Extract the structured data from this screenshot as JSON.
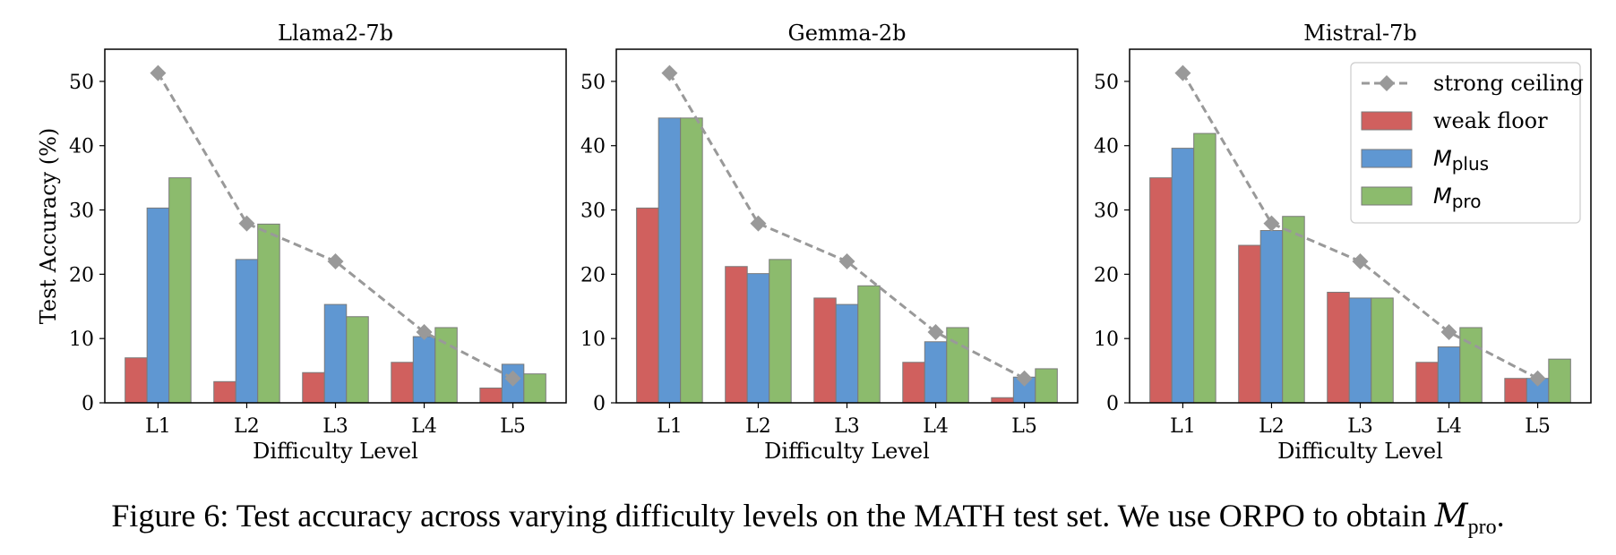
{
  "chart_data": [
    {
      "type": "bar",
      "title": "Llama2-7b",
      "xlabel": "Difficulty Level",
      "ylabel": "Test Accuracy (%)",
      "ylim": [
        0,
        55
      ],
      "yticks": [
        0,
        10,
        20,
        30,
        40,
        50
      ],
      "categories": [
        "L1",
        "L2",
        "L3",
        "L4",
        "L5"
      ],
      "series": [
        {
          "name": "weak floor",
          "kind": "bar",
          "color": "#d0605e",
          "values": [
            7.0,
            3.3,
            4.7,
            6.3,
            2.3
          ]
        },
        {
          "name": "M_plus",
          "kind": "bar",
          "color": "#5f97d2",
          "values": [
            30.3,
            22.3,
            15.3,
            10.3,
            6.0
          ]
        },
        {
          "name": "M_pro",
          "kind": "bar",
          "color": "#8cbb6d",
          "values": [
            35.0,
            27.8,
            13.4,
            11.7,
            4.5
          ]
        },
        {
          "name": "strong ceiling",
          "kind": "line",
          "color": "#999999",
          "values": [
            51.3,
            27.9,
            22.0,
            11.0,
            3.8
          ]
        }
      ]
    },
    {
      "type": "bar",
      "title": "Gemma-2b",
      "xlabel": "Difficulty Level",
      "ylabel": "",
      "ylim": [
        0,
        55
      ],
      "yticks": [
        0,
        10,
        20,
        30,
        40,
        50
      ],
      "categories": [
        "L1",
        "L2",
        "L3",
        "L4",
        "L5"
      ],
      "series": [
        {
          "name": "weak floor",
          "kind": "bar",
          "color": "#d0605e",
          "values": [
            30.3,
            21.2,
            16.3,
            6.3,
            0.8
          ]
        },
        {
          "name": "M_plus",
          "kind": "bar",
          "color": "#5f97d2",
          "values": [
            44.3,
            20.1,
            15.3,
            9.5,
            4.0
          ]
        },
        {
          "name": "M_pro",
          "kind": "bar",
          "color": "#8cbb6d",
          "values": [
            44.3,
            22.3,
            18.2,
            11.7,
            5.3
          ]
        },
        {
          "name": "strong ceiling",
          "kind": "line",
          "color": "#999999",
          "values": [
            51.3,
            27.9,
            22.0,
            11.0,
            3.8
          ]
        }
      ]
    },
    {
      "type": "bar",
      "title": "Mistral-7b",
      "xlabel": "Difficulty Level",
      "ylabel": "",
      "ylim": [
        0,
        55
      ],
      "yticks": [
        0,
        10,
        20,
        30,
        40,
        50
      ],
      "categories": [
        "L1",
        "L2",
        "L3",
        "L4",
        "L5"
      ],
      "legend": "top-right",
      "series": [
        {
          "name": "weak floor",
          "kind": "bar",
          "color": "#d0605e",
          "values": [
            35.0,
            24.5,
            17.2,
            6.3,
            3.8
          ]
        },
        {
          "name": "M_plus",
          "kind": "bar",
          "color": "#5f97d2",
          "values": [
            39.6,
            26.8,
            16.3,
            8.7,
            3.8
          ]
        },
        {
          "name": "M_pro",
          "kind": "bar",
          "color": "#8cbb6d",
          "values": [
            41.9,
            29.0,
            16.3,
            11.7,
            6.8
          ]
        },
        {
          "name": "strong ceiling",
          "kind": "line",
          "color": "#999999",
          "values": [
            51.3,
            27.9,
            22.0,
            11.0,
            3.8
          ]
        }
      ]
    }
  ],
  "legend_items": [
    {
      "label": "strong ceiling",
      "kind": "line",
      "color": "#999999"
    },
    {
      "label": "weak floor",
      "kind": "bar",
      "color": "#d0605e"
    },
    {
      "label": "M",
      "sub": "plus",
      "kind": "bar",
      "color": "#5f97d2"
    },
    {
      "label": "M",
      "sub": "pro",
      "kind": "bar",
      "color": "#8cbb6d"
    }
  ],
  "caption": {
    "prefix": "Figure 6:",
    "text": "Test accuracy across varying difficulty levels on the MATH test set. We use ORPO to obtain",
    "symbol": "M",
    "symbol_sub": "pro",
    "suffix": "."
  }
}
